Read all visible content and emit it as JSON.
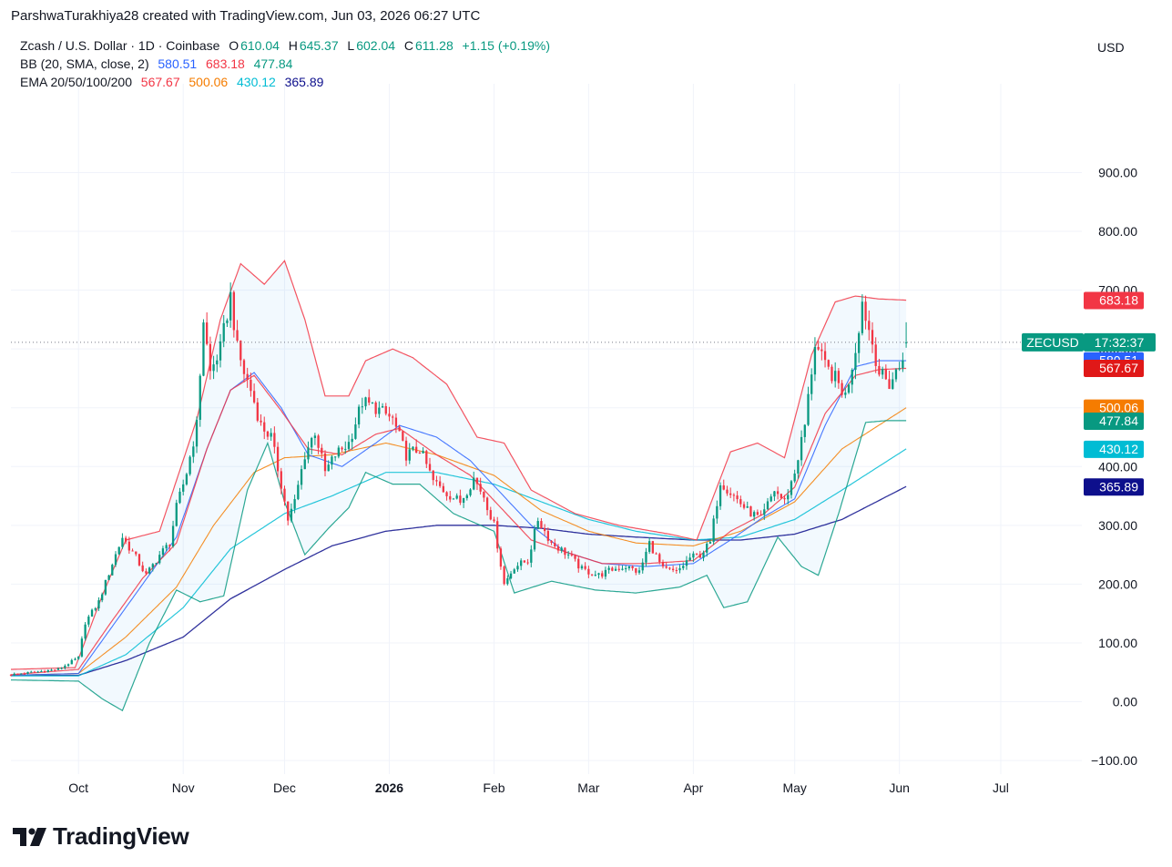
{
  "header": "ParshwaTurakhiya28 created with TradingView.com, Jun 03, 2026 06:27 UTC",
  "legend": {
    "symbol": "Zcash / U.S. Dollar · 1D · Coinbase",
    "o_label": "O",
    "o": "610.04",
    "h_label": "H",
    "h": "645.37",
    "l_label": "L",
    "l": "602.04",
    "c_label": "C",
    "c": "611.28",
    "change": "+1.15 (+0.19%)",
    "bb_label": "BB (20, SMA, close, 2)",
    "bb_basis": "580.51",
    "bb_upper": "683.18",
    "bb_lower": "477.84",
    "ema_label": "EMA 20/50/100/200",
    "ema20": "567.67",
    "ema50": "500.06",
    "ema100": "430.12",
    "ema200": "365.89"
  },
  "currency": "USD",
  "price_tag": {
    "symbol": "ZECUSD",
    "countdown": "17:32:37"
  },
  "logo_text": "TradingView",
  "colors": {
    "up": "#089981",
    "down": "#f23645",
    "bb_basis": "#2962ff",
    "bb_upper": "#f23645",
    "bb_lower": "#089981",
    "ema20": "#f23645",
    "ema50": "#f57c00",
    "ema100": "#00bcd4",
    "ema200": "#0d0f8c",
    "zec_tag": "#089981"
  },
  "chart_data": {
    "type": "candlestick",
    "title": "Zcash / U.S. Dollar · 1D · Coinbase",
    "ylabel": "USD",
    "ylim": [
      -120,
      1020
    ],
    "y_ticks": [
      -100,
      0,
      100,
      200,
      300,
      400,
      500,
      600,
      700,
      800,
      900
    ],
    "x_range": [
      "2025-09-11",
      "2026-07-25"
    ],
    "x_ticks": [
      {
        "label": "Oct",
        "date": "2025-10-01",
        "bold": false
      },
      {
        "label": "Nov",
        "date": "2025-11-01",
        "bold": false
      },
      {
        "label": "Dec",
        "date": "2025-12-01",
        "bold": false
      },
      {
        "label": "2026",
        "date": "2026-01-01",
        "bold": true
      },
      {
        "label": "Feb",
        "date": "2026-02-01",
        "bold": false
      },
      {
        "label": "Mar",
        "date": "2026-03-01",
        "bold": false
      },
      {
        "label": "Apr",
        "date": "2026-04-01",
        "bold": false
      },
      {
        "label": "May",
        "date": "2026-05-01",
        "bold": false
      },
      {
        "label": "Jun",
        "date": "2026-06-01",
        "bold": false
      },
      {
        "label": "Jul",
        "date": "2026-07-01",
        "bold": false
      }
    ],
    "price_labels": [
      {
        "value": 683.18,
        "label": "683.18",
        "color": "#f23645"
      },
      {
        "value": 580.51,
        "label": "580.51",
        "color": "#2962ff"
      },
      {
        "value": 567.67,
        "label": "567.67",
        "color": "#e01818"
      },
      {
        "value": 500.06,
        "label": "500.06",
        "color": "#f57c00"
      },
      {
        "value": 477.84,
        "label": "477.84",
        "color": "#089981"
      },
      {
        "value": 430.12,
        "label": "430.12",
        "color": "#00bcd4"
      },
      {
        "value": 365.89,
        "label": "365.89",
        "color": "#0d0f8c"
      }
    ],
    "last_price": 611.28,
    "close_anchors": [
      [
        "2025-09-11",
        46
      ],
      [
        "2025-09-25",
        55
      ],
      [
        "2025-10-01",
        75
      ],
      [
        "2025-10-03",
        135
      ],
      [
        "2025-10-07",
        170
      ],
      [
        "2025-10-11",
        235
      ],
      [
        "2025-10-14",
        280
      ],
      [
        "2025-10-18",
        245
      ],
      [
        "2025-10-21",
        215
      ],
      [
        "2025-10-25",
        250
      ],
      [
        "2025-10-28",
        270
      ],
      [
        "2025-10-30",
        330
      ],
      [
        "2025-11-02",
        390
      ],
      [
        "2025-11-05",
        470
      ],
      [
        "2025-11-07",
        650
      ],
      [
        "2025-11-09",
        560
      ],
      [
        "2025-11-12",
        600
      ],
      [
        "2025-11-15",
        690
      ],
      [
        "2025-11-17",
        600
      ],
      [
        "2025-11-19",
        560
      ],
      [
        "2025-11-21",
        530
      ],
      [
        "2025-11-24",
        470
      ],
      [
        "2025-11-27",
        450
      ],
      [
        "2025-11-30",
        370
      ],
      [
        "2025-12-02",
        310
      ],
      [
        "2025-12-04",
        340
      ],
      [
        "2025-12-07",
        420
      ],
      [
        "2025-12-10",
        460
      ],
      [
        "2025-12-13",
        390
      ],
      [
        "2025-12-16",
        420
      ],
      [
        "2025-12-20",
        440
      ],
      [
        "2025-12-24",
        510
      ],
      [
        "2025-12-28",
        500
      ],
      [
        "2026-01-02",
        480
      ],
      [
        "2026-01-06",
        420
      ],
      [
        "2026-01-10",
        430
      ],
      [
        "2026-01-14",
        375
      ],
      [
        "2026-01-18",
        355
      ],
      [
        "2026-01-22",
        340
      ],
      [
        "2026-01-26",
        380
      ],
      [
        "2026-01-29",
        350
      ],
      [
        "2026-02-01",
        300
      ],
      [
        "2026-02-04",
        200
      ],
      [
        "2026-02-07",
        230
      ],
      [
        "2026-02-11",
        240
      ],
      [
        "2026-02-14",
        310
      ],
      [
        "2026-02-18",
        270
      ],
      [
        "2026-02-23",
        250
      ],
      [
        "2026-02-27",
        225
      ],
      [
        "2026-03-04",
        215
      ],
      [
        "2026-03-08",
        225
      ],
      [
        "2026-03-12",
        230
      ],
      [
        "2026-03-16",
        220
      ],
      [
        "2026-03-19",
        270
      ],
      [
        "2026-03-23",
        225
      ],
      [
        "2026-03-27",
        220
      ],
      [
        "2026-03-31",
        245
      ],
      [
        "2026-04-03",
        250
      ],
      [
        "2026-04-06",
        270
      ],
      [
        "2026-04-09",
        375
      ],
      [
        "2026-04-13",
        350
      ],
      [
        "2026-04-17",
        325
      ],
      [
        "2026-04-21",
        310
      ],
      [
        "2026-04-25",
        360
      ],
      [
        "2026-04-28",
        340
      ],
      [
        "2026-05-01",
        390
      ],
      [
        "2026-05-04",
        470
      ],
      [
        "2026-05-07",
        610
      ],
      [
        "2026-05-10",
        570
      ],
      [
        "2026-05-13",
        550
      ],
      [
        "2026-05-16",
        520
      ],
      [
        "2026-05-19",
        600
      ],
      [
        "2026-05-21",
        680
      ],
      [
        "2026-05-24",
        610
      ],
      [
        "2026-05-26",
        560
      ],
      [
        "2026-05-29",
        540
      ],
      [
        "2026-06-01",
        570
      ],
      [
        "2026-06-03",
        611.28
      ]
    ],
    "series": [
      {
        "name": "BB upper",
        "values": [
          [
            "2025-09-11",
            55
          ],
          [
            "2025-09-30",
            58
          ],
          [
            "2025-10-08",
            180
          ],
          [
            "2025-10-15",
            275
          ],
          [
            "2025-10-25",
            290
          ],
          [
            "2025-11-05",
            480
          ],
          [
            "2025-11-12",
            650
          ],
          [
            "2025-11-18",
            745
          ],
          [
            "2025-11-25",
            710
          ],
          [
            "2025-12-01",
            750
          ],
          [
            "2025-12-07",
            650
          ],
          [
            "2025-12-13",
            520
          ],
          [
            "2025-12-20",
            520
          ],
          [
            "2025-12-25",
            580
          ],
          [
            "2026-01-02",
            600
          ],
          [
            "2026-01-08",
            585
          ],
          [
            "2026-01-18",
            540
          ],
          [
            "2026-01-27",
            450
          ],
          [
            "2026-02-04",
            440
          ],
          [
            "2026-02-12",
            360
          ],
          [
            "2026-02-25",
            320
          ],
          [
            "2026-03-10",
            300
          ],
          [
            "2026-03-25",
            285
          ],
          [
            "2026-04-02",
            275
          ],
          [
            "2026-04-12",
            425
          ],
          [
            "2026-04-20",
            440
          ],
          [
            "2026-04-28",
            415
          ],
          [
            "2026-05-06",
            590
          ],
          [
            "2026-05-13",
            680
          ],
          [
            "2026-05-19",
            690
          ],
          [
            "2026-05-26",
            685
          ],
          [
            "2026-06-03",
            683
          ]
        ]
      },
      {
        "name": "BB basis",
        "values": [
          [
            "2025-09-11",
            45
          ],
          [
            "2025-10-01",
            48
          ],
          [
            "2025-10-10",
            120
          ],
          [
            "2025-10-20",
            200
          ],
          [
            "2025-10-30",
            280
          ],
          [
            "2025-11-08",
            430
          ],
          [
            "2025-11-15",
            530
          ],
          [
            "2025-11-22",
            560
          ],
          [
            "2025-11-30",
            500
          ],
          [
            "2025-12-08",
            420
          ],
          [
            "2025-12-18",
            400
          ],
          [
            "2025-12-28",
            440
          ],
          [
            "2026-01-04",
            470
          ],
          [
            "2026-01-15",
            450
          ],
          [
            "2026-01-25",
            410
          ],
          [
            "2026-02-03",
            355
          ],
          [
            "2026-02-12",
            300
          ],
          [
            "2026-02-22",
            255
          ],
          [
            "2026-03-05",
            235
          ],
          [
            "2026-03-18",
            230
          ],
          [
            "2026-04-01",
            235
          ],
          [
            "2026-04-12",
            275
          ],
          [
            "2026-04-22",
            315
          ],
          [
            "2026-05-01",
            345
          ],
          [
            "2026-05-10",
            470
          ],
          [
            "2026-05-19",
            570
          ],
          [
            "2026-05-26",
            580
          ],
          [
            "2026-06-03",
            580
          ]
        ]
      },
      {
        "name": "BB lower",
        "values": [
          [
            "2025-09-11",
            37
          ],
          [
            "2025-10-01",
            35
          ],
          [
            "2025-10-08",
            5
          ],
          [
            "2025-10-14",
            -15
          ],
          [
            "2025-10-22",
            100
          ],
          [
            "2025-10-30",
            190
          ],
          [
            "2025-11-06",
            170
          ],
          [
            "2025-11-13",
            180
          ],
          [
            "2025-11-20",
            360
          ],
          [
            "2025-11-26",
            440
          ],
          [
            "2025-12-01",
            340
          ],
          [
            "2025-12-07",
            250
          ],
          [
            "2025-12-14",
            295
          ],
          [
            "2025-12-20",
            330
          ],
          [
            "2025-12-25",
            390
          ],
          [
            "2026-01-02",
            370
          ],
          [
            "2026-01-10",
            370
          ],
          [
            "2026-01-20",
            320
          ],
          [
            "2026-02-01",
            290
          ],
          [
            "2026-02-07",
            185
          ],
          [
            "2026-02-18",
            205
          ],
          [
            "2026-03-03",
            190
          ],
          [
            "2026-03-15",
            185
          ],
          [
            "2026-03-28",
            195
          ],
          [
            "2026-04-05",
            215
          ],
          [
            "2026-04-10",
            160
          ],
          [
            "2026-04-17",
            170
          ],
          [
            "2026-04-26",
            280
          ],
          [
            "2026-05-03",
            230
          ],
          [
            "2026-05-08",
            215
          ],
          [
            "2026-05-14",
            320
          ],
          [
            "2026-05-22",
            475
          ],
          [
            "2026-05-28",
            478
          ],
          [
            "2026-06-03",
            478
          ]
        ]
      },
      {
        "name": "EMA 20",
        "values": [
          [
            "2025-09-11",
            46
          ],
          [
            "2025-10-01",
            55
          ],
          [
            "2025-10-10",
            130
          ],
          [
            "2025-10-20",
            210
          ],
          [
            "2025-10-30",
            270
          ],
          [
            "2025-11-08",
            430
          ],
          [
            "2025-11-15",
            530
          ],
          [
            "2025-11-22",
            555
          ],
          [
            "2025-11-30",
            495
          ],
          [
            "2025-12-08",
            430
          ],
          [
            "2025-12-18",
            420
          ],
          [
            "2025-12-28",
            455
          ],
          [
            "2026-01-04",
            465
          ],
          [
            "2026-01-15",
            420
          ],
          [
            "2026-01-25",
            385
          ],
          [
            "2026-02-03",
            330
          ],
          [
            "2026-02-12",
            275
          ],
          [
            "2026-02-22",
            255
          ],
          [
            "2026-03-05",
            235
          ],
          [
            "2026-03-18",
            235
          ],
          [
            "2026-04-01",
            240
          ],
          [
            "2026-04-12",
            290
          ],
          [
            "2026-04-22",
            320
          ],
          [
            "2026-05-01",
            365
          ],
          [
            "2026-05-10",
            490
          ],
          [
            "2026-05-19",
            555
          ],
          [
            "2026-05-26",
            565
          ],
          [
            "2026-06-03",
            567
          ]
        ]
      },
      {
        "name": "EMA 50",
        "values": [
          [
            "2025-09-11",
            45
          ],
          [
            "2025-10-01",
            48
          ],
          [
            "2025-10-15",
            110
          ],
          [
            "2025-10-30",
            195
          ],
          [
            "2025-11-10",
            300
          ],
          [
            "2025-11-22",
            390
          ],
          [
            "2025-12-01",
            415
          ],
          [
            "2025-12-15",
            420
          ],
          [
            "2025-12-31",
            440
          ],
          [
            "2026-01-15",
            420
          ],
          [
            "2026-02-01",
            385
          ],
          [
            "2026-02-15",
            325
          ],
          [
            "2026-03-01",
            290
          ],
          [
            "2026-03-15",
            270
          ],
          [
            "2026-04-01",
            265
          ],
          [
            "2026-04-15",
            290
          ],
          [
            "2026-05-01",
            340
          ],
          [
            "2026-05-15",
            430
          ],
          [
            "2026-06-03",
            500
          ]
        ]
      },
      {
        "name": "EMA 100",
        "values": [
          [
            "2025-09-11",
            44
          ],
          [
            "2025-10-01",
            44
          ],
          [
            "2025-10-15",
            80
          ],
          [
            "2025-11-01",
            160
          ],
          [
            "2025-11-15",
            260
          ],
          [
            "2025-12-01",
            320
          ],
          [
            "2025-12-15",
            350
          ],
          [
            "2025-12-31",
            390
          ],
          [
            "2026-01-15",
            390
          ],
          [
            "2026-02-01",
            370
          ],
          [
            "2026-02-15",
            340
          ],
          [
            "2026-03-01",
            310
          ],
          [
            "2026-03-15",
            290
          ],
          [
            "2026-04-01",
            275
          ],
          [
            "2026-04-15",
            280
          ],
          [
            "2026-05-01",
            310
          ],
          [
            "2026-05-15",
            360
          ],
          [
            "2026-06-03",
            430
          ]
        ]
      },
      {
        "name": "EMA 200",
        "values": [
          [
            "2025-09-11",
            45
          ],
          [
            "2025-10-01",
            45
          ],
          [
            "2025-10-15",
            70
          ],
          [
            "2025-11-01",
            110
          ],
          [
            "2025-11-15",
            175
          ],
          [
            "2025-12-01",
            225
          ],
          [
            "2025-12-15",
            265
          ],
          [
            "2025-12-31",
            290
          ],
          [
            "2026-01-15",
            300
          ],
          [
            "2026-02-01",
            300
          ],
          [
            "2026-02-15",
            295
          ],
          [
            "2026-03-01",
            285
          ],
          [
            "2026-03-15",
            280
          ],
          [
            "2026-04-01",
            275
          ],
          [
            "2026-04-15",
            275
          ],
          [
            "2026-05-01",
            285
          ],
          [
            "2026-05-15",
            310
          ],
          [
            "2026-06-03",
            366
          ]
        ]
      }
    ]
  }
}
